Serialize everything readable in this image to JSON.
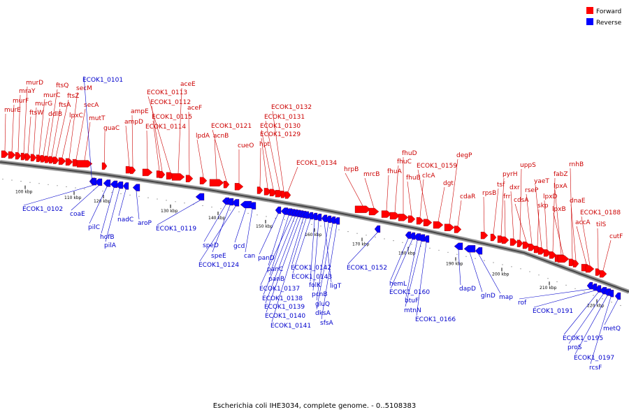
{
  "legend": {
    "forward": {
      "label": "Forward",
      "color": "#ff0000"
    },
    "reverse": {
      "label": "Reverse",
      "color": "#0000ff"
    }
  },
  "caption": "Escherichia coli IHE3034, complete genome. - 0..5108383",
  "ruler": {
    "unit": "kbp",
    "ticks": [
      "100 kbp",
      "110 kbp",
      "120 kbp",
      "130 kbp",
      "140 kbp",
      "150 kbp",
      "160 kbp",
      "170 kbp",
      "180 kbp",
      "190 kbp",
      "200 kbp",
      "210 kbp",
      "220 kbp"
    ]
  },
  "forward_genes": [
    "murE",
    "murF",
    "mraY",
    "murD",
    "ftsW",
    "murG",
    "murC",
    "ddlB",
    "ftsQ",
    "ftsA",
    "ftsZ",
    "lpxC",
    "secM",
    "secA",
    "mutT",
    "guaC",
    "ampD",
    "ampE",
    "ECOK1_0114",
    "ECOK1_0115",
    "ECOK1_0112",
    "ECOK1_0113",
    "aceE",
    "aceF",
    "lpdA",
    "acnB",
    "ECOK1_0121",
    "cueO",
    "hpt",
    "ECOK1_0129",
    "ECOK1_0130",
    "ECOK1_0131",
    "ECOK1_0132",
    "ECOK1_0134",
    "hrpB",
    "mrcB",
    "fhuA",
    "fhuC",
    "fhuD",
    "fhuB",
    "clcA",
    "ECOK1_0159",
    "dgt",
    "degP",
    "cdaR",
    "rpsB",
    "tsf",
    "pyrH",
    "frr",
    "dxr",
    "uppS",
    "cdsA",
    "rseP",
    "skp",
    "yaeT",
    "lpxD",
    "fabZ",
    "lpxA",
    "lpxB",
    "rnhB",
    "dnaE",
    "accA",
    "ECOK1_0188",
    "tilS",
    "cutF"
  ],
  "reverse_genes": [
    "ECOK1_0101",
    "ECOK1_0102",
    "coaE",
    "pilC",
    "hofB",
    "pilA",
    "nadC",
    "aroP",
    "ECOK1_0119",
    "speD",
    "speE",
    "ECOK1_0124",
    "gcd",
    "can",
    "panD",
    "panC",
    "panB",
    "ECOK1_0137",
    "ECOK1_0138",
    "ECOK1_0139",
    "ECOK1_0140",
    "ECOK1_0141",
    "ECOK1_0142",
    "ECOK1_0143",
    "folK",
    "pcnB",
    "ligT",
    "gluQ",
    "dksA",
    "sfsA",
    "ECOK1_0152",
    "hemL",
    "ECOK1_0160",
    "btuF",
    "mtnN",
    "ECOK1_0166",
    "dapD",
    "glnD",
    "map",
    "rof",
    "ECOK1_0191",
    "ECOK1_0195",
    "proS",
    "ECOK1_0197",
    "rcsF",
    "metQ"
  ]
}
